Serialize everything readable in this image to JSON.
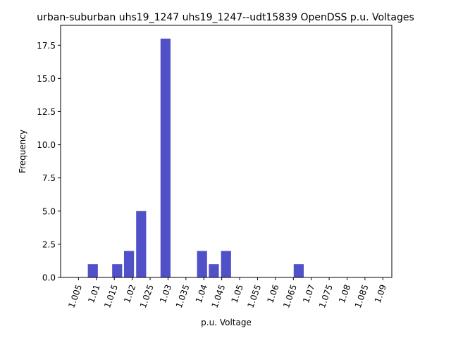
{
  "chart_data": {
    "type": "bar",
    "title": "urban-suburban uhs19_1247 uhs19_1247--udt15839 OpenDSS p.u. Voltages",
    "xlabel": "p.u. Voltage",
    "ylabel": "Frequency",
    "bar_color": "#5050c8",
    "xlim": [
      1.0,
      1.0925
    ],
    "ylim": [
      0,
      19
    ],
    "grid": false,
    "legend": "none",
    "x_ticks": [
      1.005,
      1.01,
      1.015,
      1.02,
      1.025,
      1.03,
      1.035,
      1.04,
      1.045,
      1.05,
      1.055,
      1.06,
      1.065,
      1.07,
      1.075,
      1.08,
      1.085,
      1.09
    ],
    "x_tick_labels": [
      "1.005",
      "1.01",
      "1.015",
      "1.02",
      "1.025",
      "1.03",
      "1.035",
      "1.04",
      "1.045",
      "1.05",
      "1.055",
      "1.06",
      "1.065",
      "1.07",
      "1.075",
      "1.08",
      "1.085",
      "1.09"
    ],
    "y_ticks": [
      0,
      2.5,
      5,
      7.5,
      10,
      12.5,
      15,
      17.5
    ],
    "y_tick_labels": [
      "0.0",
      "2.5",
      "5.0",
      "7.5",
      "10.0",
      "12.5",
      "15.0",
      "17.5"
    ],
    "bins": [
      {
        "x_start": 1.0076,
        "x_end": 1.0104,
        "value": 1
      },
      {
        "x_start": 1.0144,
        "x_end": 1.0172,
        "value": 1
      },
      {
        "x_start": 1.0177,
        "x_end": 1.0205,
        "value": 2
      },
      {
        "x_start": 1.0211,
        "x_end": 1.0239,
        "value": 5
      },
      {
        "x_start": 1.0279,
        "x_end": 1.0307,
        "value": 18
      },
      {
        "x_start": 1.0381,
        "x_end": 1.0409,
        "value": 2
      },
      {
        "x_start": 1.0414,
        "x_end": 1.0442,
        "value": 1
      },
      {
        "x_start": 1.0448,
        "x_end": 1.0476,
        "value": 2
      },
      {
        "x_start": 1.0651,
        "x_end": 1.0679,
        "value": 1
      }
    ]
  }
}
